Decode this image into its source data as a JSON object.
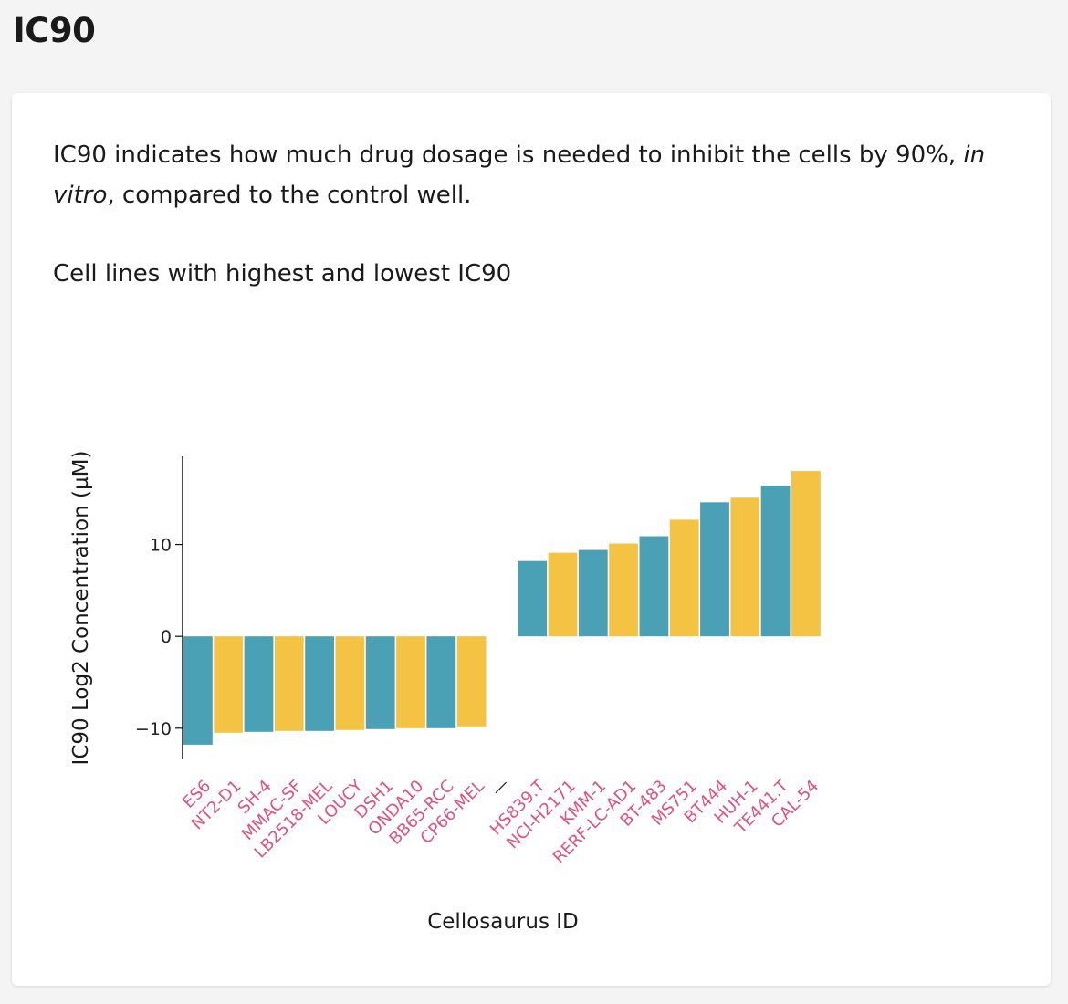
{
  "page": {
    "title": "IC90"
  },
  "card": {
    "description_prefix": "IC90 indicates how much drug dosage is needed to inhibit the cells by 90%, ",
    "description_italic": "in vitro",
    "description_suffix": ", compared to the control well.",
    "subtitle": "Cell lines with highest and lowest IC90"
  },
  "colors": {
    "teal": "#4aa0b5",
    "yellow": "#f5c344",
    "label": "#e0527e",
    "axis": "#111111"
  },
  "chart_data": {
    "type": "bar",
    "title": "",
    "xlabel": "Cellosaurus ID",
    "ylabel": "IC90 Log2 Concentration (µM)",
    "ylim": [
      -13.4,
      19.6
    ],
    "yticks": [
      -10,
      0,
      10
    ],
    "ytick_labels": [
      "−10",
      "0",
      "10"
    ],
    "separator": "—",
    "groups": [
      {
        "name": "lowest",
        "categories": [
          "ES6",
          "NT2-D1",
          "SH-4",
          "MMAC-SF",
          "LB2518-MEL",
          "LOUCY",
          "DSH1",
          "ONDA10",
          "BB65-RCC",
          "CP66-MEL"
        ],
        "values": [
          -11.8,
          -10.5,
          -10.4,
          -10.3,
          -10.3,
          -10.2,
          -10.1,
          -10.0,
          -10.0,
          -9.8
        ]
      },
      {
        "name": "highest",
        "categories": [
          "HS839.T",
          "NCI-H2171",
          "KMM-1",
          "RERF-LC-AD1",
          "BT-483",
          "MS751",
          "BT444",
          "HUH-1",
          "TE441.T",
          "CAL-54"
        ],
        "values": [
          8.2,
          9.1,
          9.4,
          10.1,
          10.9,
          12.7,
          14.6,
          15.1,
          16.4,
          18.0
        ]
      }
    ]
  }
}
